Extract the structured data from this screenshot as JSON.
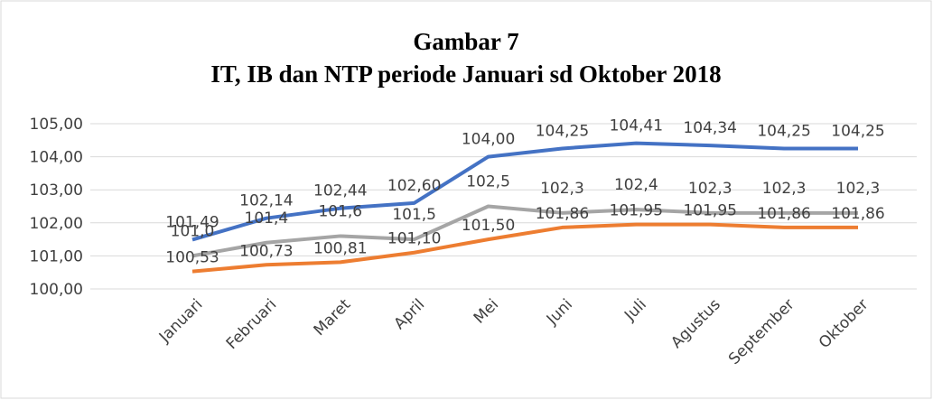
{
  "chart_data": {
    "type": "line",
    "title": "Gambar 7",
    "subtitle": "IT, IB dan NTP periode Januari sd Oktober 2018",
    "categories": [
      "Januari",
      "Februari",
      "Maret",
      "April",
      "Mei",
      "Juni",
      "Juli",
      "Agustus",
      "September",
      "Oktober"
    ],
    "series": [
      {
        "color": "#4472c4",
        "values": [
          101.49,
          102.14,
          102.44,
          102.6,
          104.0,
          104.25,
          104.41,
          104.34,
          104.25,
          104.25
        ],
        "value_labels": [
          "101,49",
          "102,14",
          "102,44",
          "102,60",
          "104,00",
          "104,25",
          "104,41",
          "104,34",
          "104,25",
          "104,25"
        ]
      },
      {
        "color": "#ed7d31",
        "values": [
          100.53,
          100.73,
          100.81,
          101.1,
          101.5,
          101.86,
          101.95,
          101.95,
          101.86,
          101.86
        ],
        "value_labels": [
          "100,53",
          "100,73",
          "100,81",
          "101,10",
          "101,50",
          "101,86",
          "101,95",
          "101,95",
          "101,86",
          "101,86"
        ]
      },
      {
        "color": "#a5a5a5",
        "values": [
          101.0,
          101.4,
          101.6,
          101.5,
          102.5,
          102.3,
          102.4,
          102.3,
          102.3,
          102.3
        ],
        "value_labels": [
          "101,0",
          "101,4",
          "101,6",
          "101,5",
          "102,5",
          "102,3",
          "102,4",
          "102,3",
          "102,3",
          "102,3"
        ]
      }
    ],
    "ylim": [
      100,
      105
    ],
    "yticks": [
      {
        "value": 100,
        "label": "100,00"
      },
      {
        "value": 101,
        "label": "101,00"
      },
      {
        "value": 102,
        "label": "102,00"
      },
      {
        "value": 103,
        "label": "103,00"
      },
      {
        "value": 104,
        "label": "104,00"
      },
      {
        "value": 105,
        "label": "105,00"
      }
    ],
    "grid": true
  }
}
